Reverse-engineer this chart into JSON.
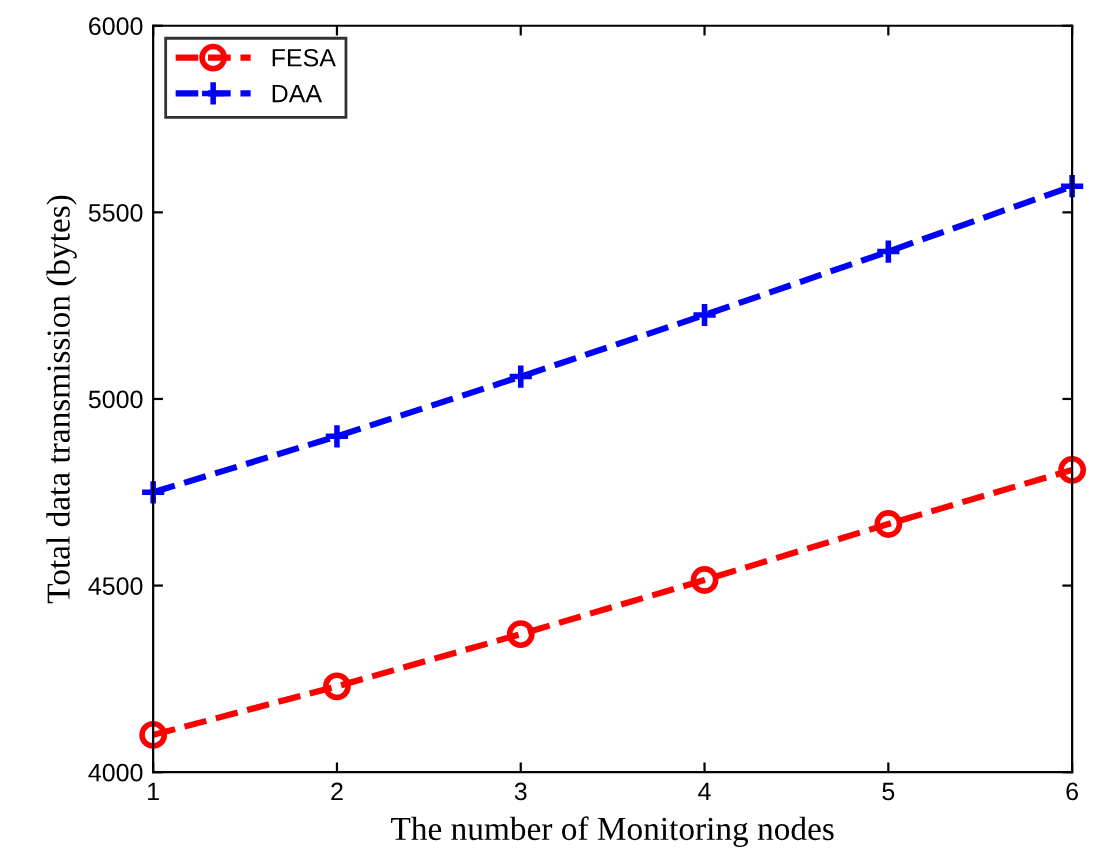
{
  "chart_data": {
    "type": "line",
    "xlabel": "The number of Monitoring nodes",
    "ylabel": "Total data transmission (bytes)",
    "x": [
      1,
      2,
      3,
      4,
      5,
      6
    ],
    "series": [
      {
        "name": "FESA",
        "color": "#ff0000",
        "values": [
          4100,
          4230,
          4370,
          4515,
          4665,
          4810
        ],
        "marker": "circle"
      },
      {
        "name": "DAA",
        "color": "#0000ff",
        "values": [
          4750,
          4900,
          5060,
          5225,
          5395,
          5570
        ],
        "marker": "cross"
      }
    ],
    "xlim": [
      1,
      6
    ],
    "ylim": [
      4000,
      6000
    ],
    "xticks": [
      1,
      2,
      3,
      4,
      5,
      6
    ],
    "yticks": [
      4000,
      4500,
      5000,
      5500,
      6000
    ],
    "grid": false,
    "legend": "top left",
    "line_style": "dashed"
  }
}
